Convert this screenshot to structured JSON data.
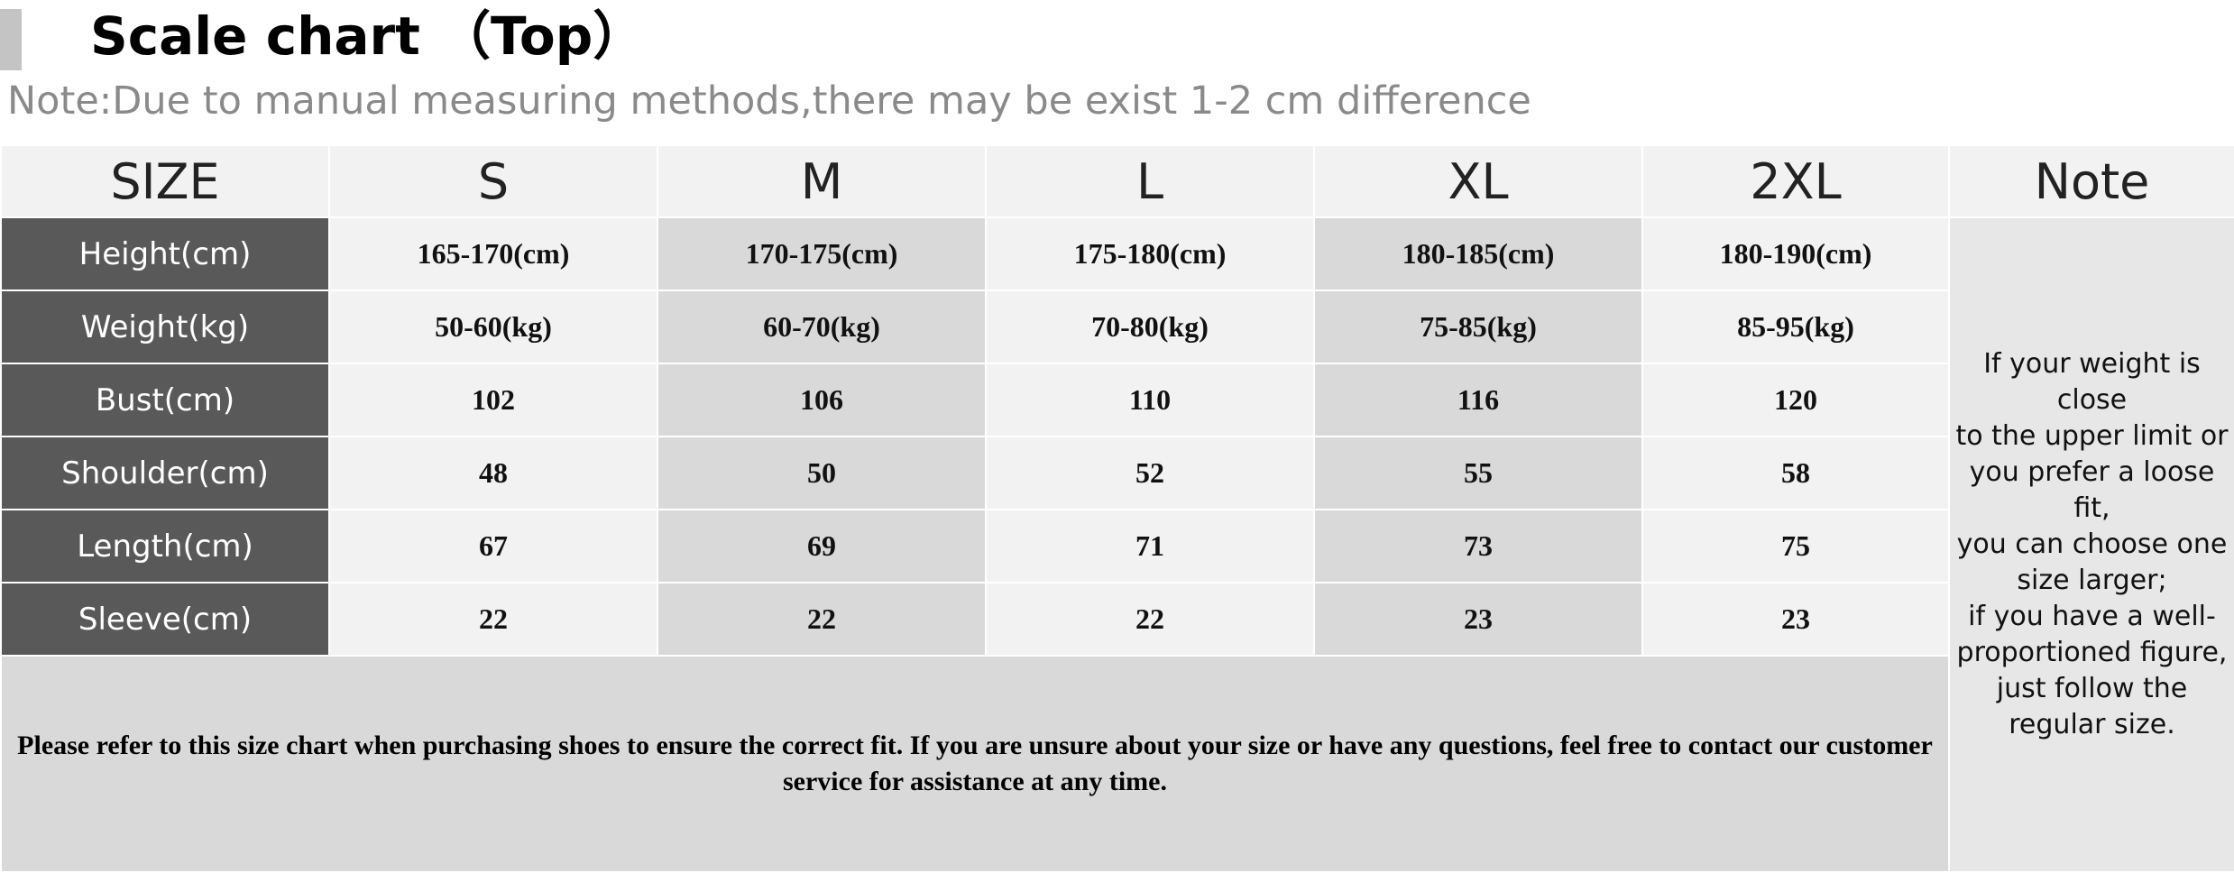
{
  "header": {
    "title": "Scale chart （Top）",
    "note": "Note:Due to manual measuring methods,there may be exist 1-2 cm difference"
  },
  "table": {
    "columns": [
      "SIZE",
      "S",
      "M",
      "L",
      "XL",
      "2XL",
      "Note"
    ],
    "rows": [
      {
        "label": "Height(cm)",
        "values": [
          "165-170(cm)",
          "170-175(cm)",
          "175-180(cm)",
          "180-185(cm)",
          "180-190(cm)"
        ]
      },
      {
        "label": "Weight(kg)",
        "values": [
          "50-60(kg)",
          "60-70(kg)",
          "70-80(kg)",
          "75-85(kg)",
          "85-95(kg)"
        ]
      },
      {
        "label": "Bust(cm)",
        "values": [
          "102",
          "106",
          "110",
          "116",
          "120"
        ]
      },
      {
        "label": "Shoulder(cm)",
        "values": [
          "48",
          "50",
          "52",
          "55",
          "58"
        ]
      },
      {
        "label": "Length(cm)",
        "values": [
          "67",
          "69",
          "71",
          "73",
          "75"
        ]
      },
      {
        "label": "Sleeve(cm)",
        "values": [
          "22",
          "22",
          "22",
          "23",
          "23"
        ]
      }
    ],
    "side_note": [
      "If your weight is close",
      "to the upper limit or",
      "you prefer a loose fit,",
      "you can choose one",
      "size larger;",
      "if you have a well-",
      "proportioned figure,",
      "just follow the",
      "regular size."
    ],
    "bottom_note": "Please refer to this size chart when purchasing shoes to ensure the correct fit. If you are unsure about your size or have any questions, feel free to contact our customer service for assistance at any time."
  },
  "colors": {
    "label_bg": "#595959",
    "light_cell": "#f2f2f2",
    "dark_cell": "#d9d9d9",
    "accent_bar": "#c4c4c4",
    "note_text": "#8a8a8a"
  }
}
